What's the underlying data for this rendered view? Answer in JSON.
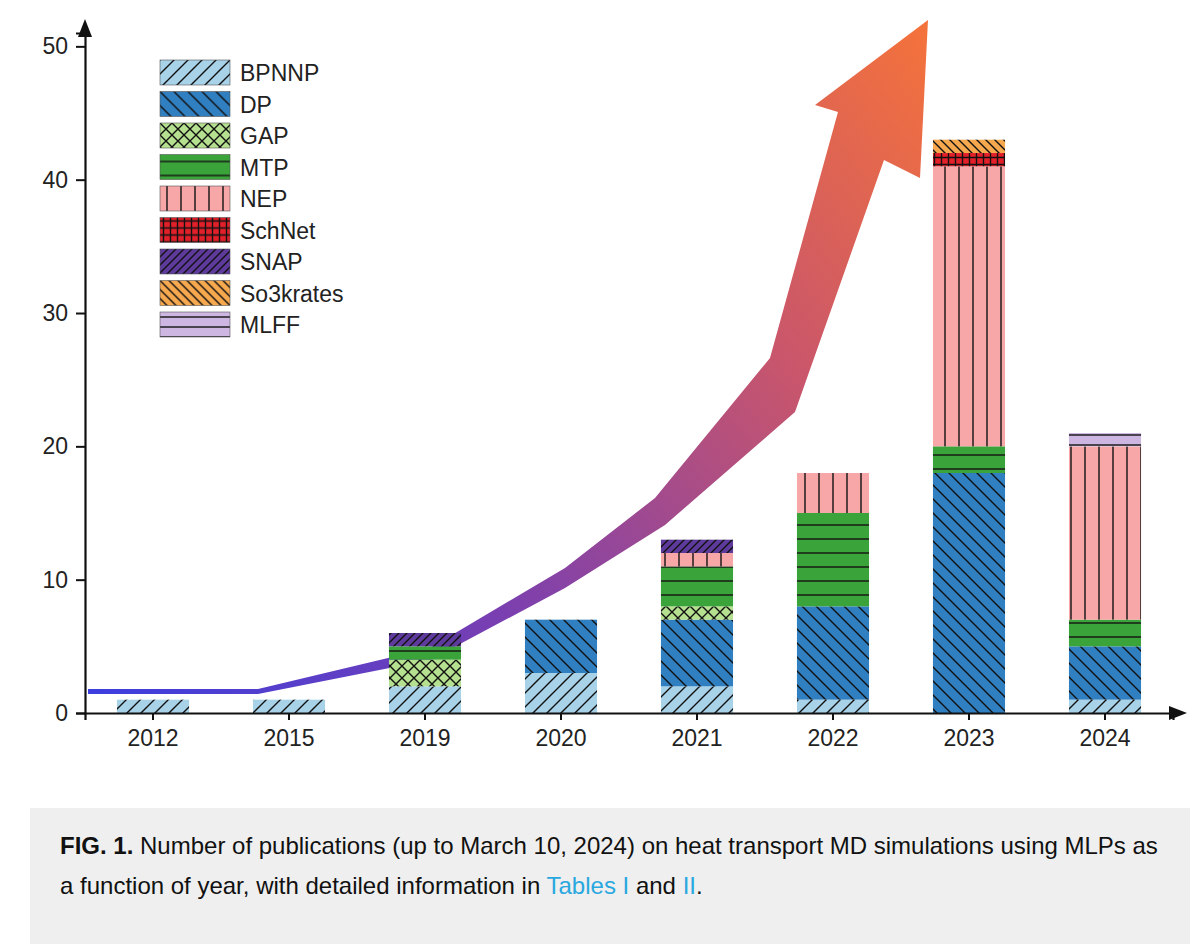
{
  "chart_data": {
    "type": "bar",
    "stacked": true,
    "grid": false,
    "legend": "top-left",
    "caption": [
      "FIG. 1.",
      " Number of publications (up to March 10, 2024) on heat transport MD simulations using MLPs as a function of year, with detailed information in ",
      "Tables I",
      " and ",
      "II",
      "."
    ],
    "categories": [
      "2012",
      "2015",
      "2019",
      "2020",
      "2021",
      "2022",
      "2023",
      "2024"
    ],
    "ylim": [
      0,
      51
    ],
    "yticks": [
      0,
      10,
      20,
      30,
      40,
      50
    ],
    "series": [
      {
        "name": "BPNNP",
        "color": "#a8d2e8",
        "values": [
          1,
          1,
          2,
          3,
          2,
          1,
          0,
          1
        ]
      },
      {
        "name": "DP",
        "color": "#2f7fc1",
        "values": [
          0,
          0,
          0,
          4,
          5,
          7,
          18,
          4
        ]
      },
      {
        "name": "GAP",
        "color": "#b5e08f",
        "values": [
          0,
          0,
          2,
          0,
          1,
          0,
          0,
          0
        ]
      },
      {
        "name": "MTP",
        "color": "#3aa43a",
        "values": [
          0,
          0,
          1,
          0,
          3,
          7,
          2,
          2
        ]
      },
      {
        "name": "NEP",
        "color": "#f7a7a7",
        "values": [
          0,
          0,
          0,
          0,
          1,
          3,
          21,
          13
        ]
      },
      {
        "name": "SchNet",
        "color": "#e3202a",
        "values": [
          0,
          0,
          0,
          0,
          0,
          0,
          1,
          0
        ]
      },
      {
        "name": "SNAP",
        "color": "#5d3a9b",
        "values": [
          0,
          0,
          1,
          0,
          1,
          0,
          0,
          0
        ]
      },
      {
        "name": "So3krates",
        "color": "#f6a84f",
        "values": [
          0,
          0,
          0,
          0,
          0,
          0,
          1,
          0
        ]
      },
      {
        "name": "MLFF",
        "color": "#cdb6e2",
        "values": [
          0,
          0,
          0,
          0,
          0,
          0,
          0,
          1
        ]
      }
    ]
  }
}
